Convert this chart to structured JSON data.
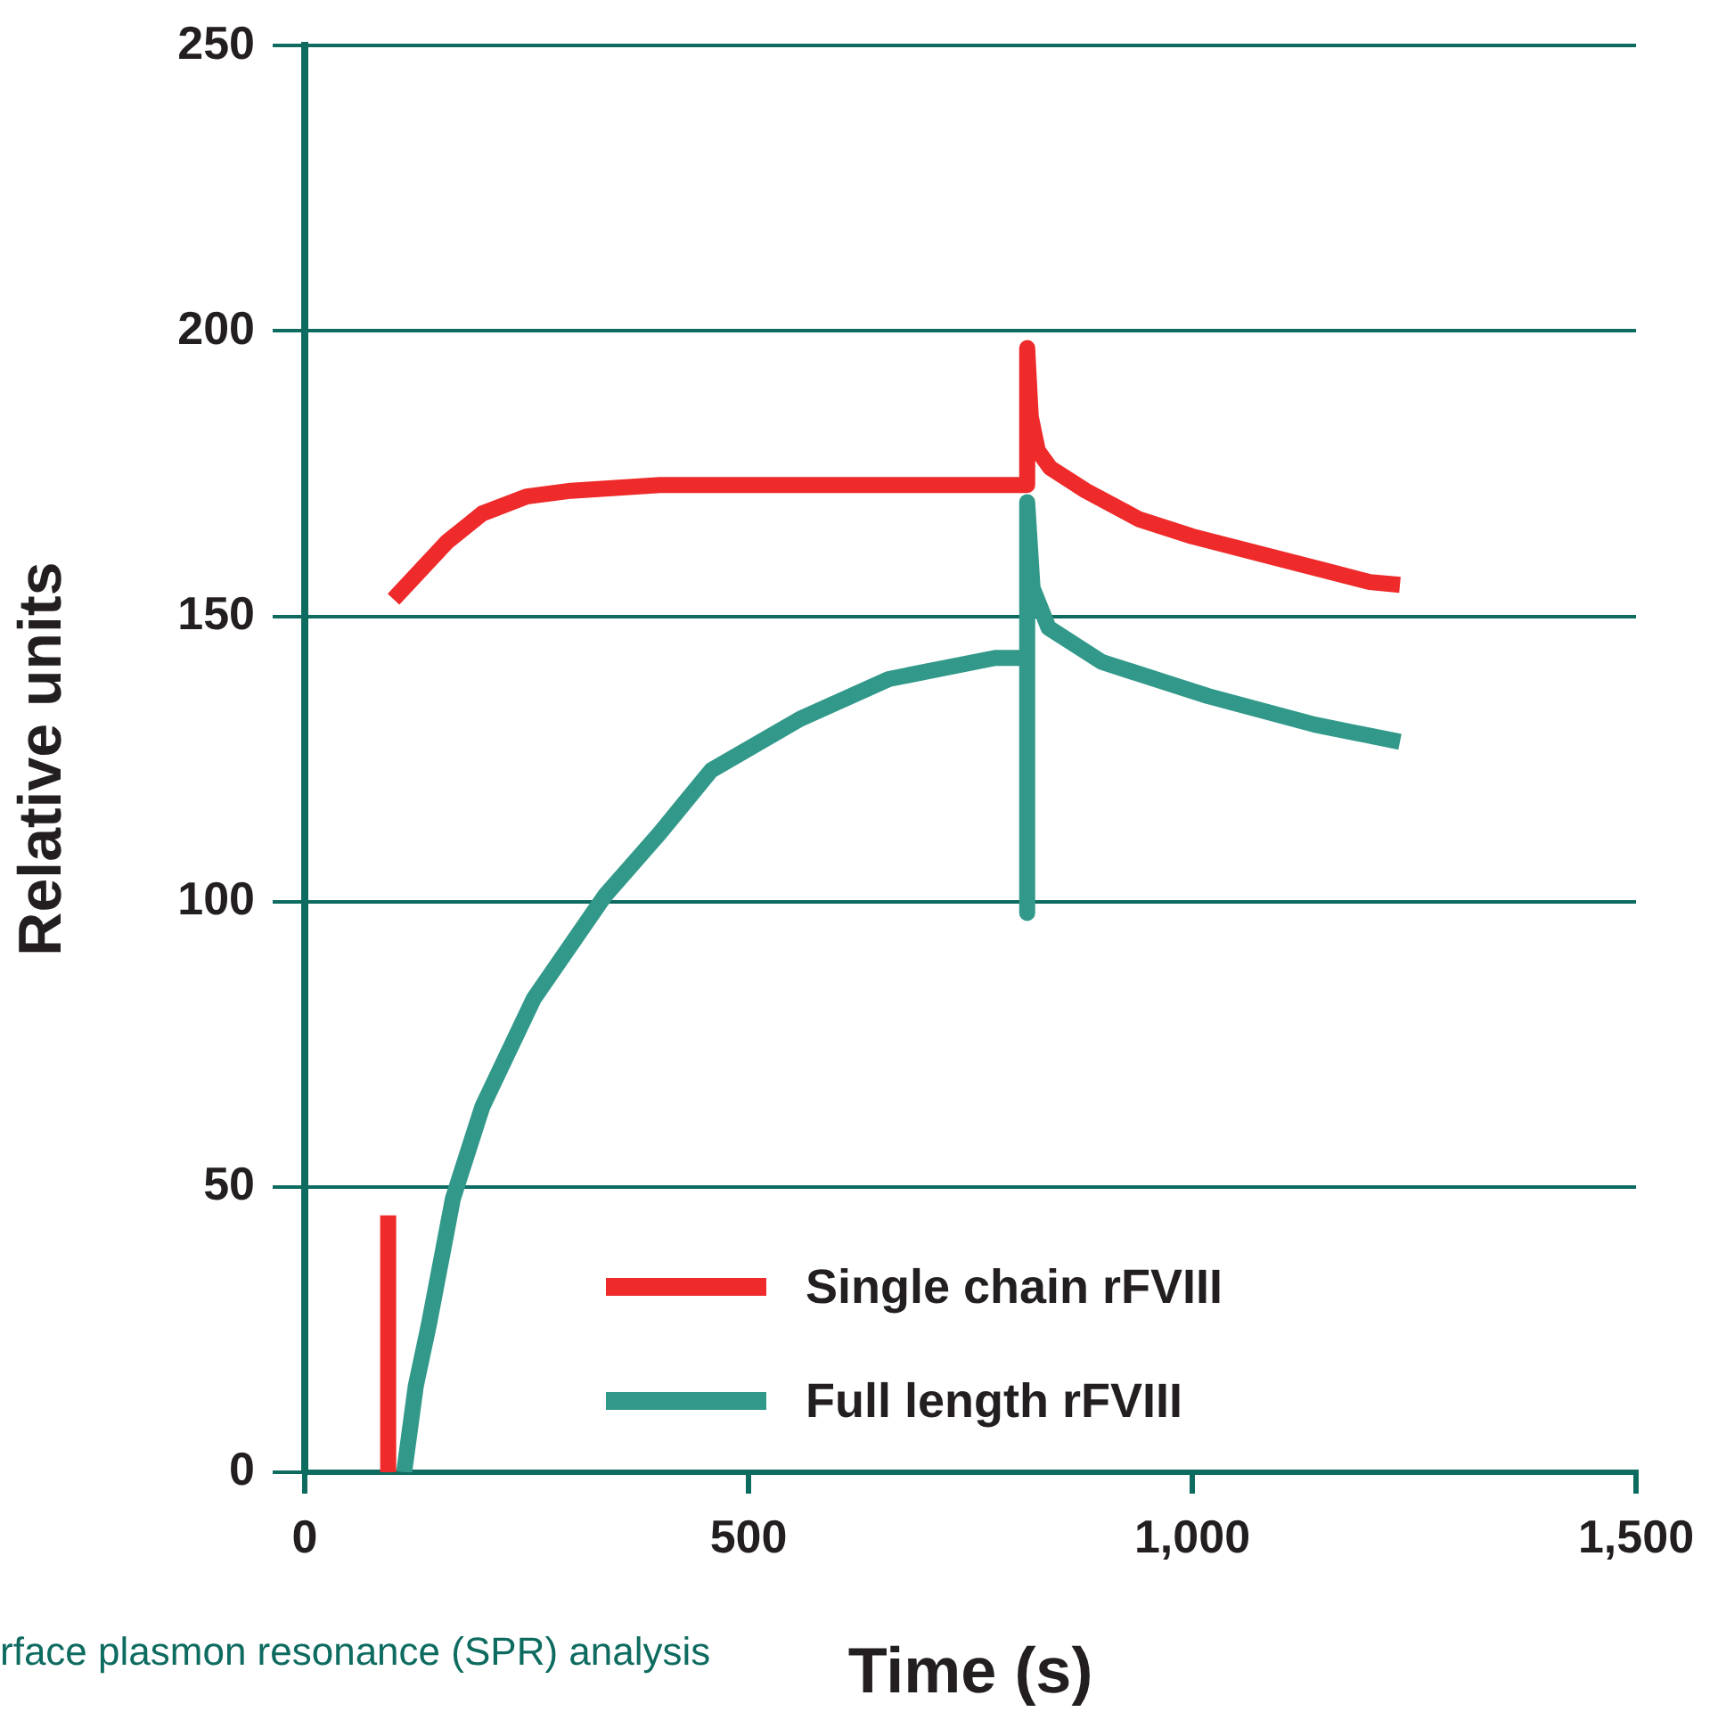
{
  "chart_data": {
    "type": "line",
    "xlabel": "Time (s)",
    "ylabel": "Relative units",
    "xlim": [
      0,
      1500
    ],
    "xticks": [
      {
        "value": 0,
        "label": "0"
      },
      {
        "value": 500,
        "label": "500"
      },
      {
        "value": 1000,
        "label": "1,000"
      },
      {
        "value": 1500,
        "label": "1,500"
      }
    ],
    "ylim": [
      0,
      250
    ],
    "yticks": [
      0,
      50,
      100,
      150,
      200,
      250
    ],
    "grid": "y",
    "legend": "bottom right",
    "marker": "none",
    "line_style": "solid",
    "series": [
      {
        "name": "Single chain rFVIII",
        "color": "#ee2a2a",
        "x": [
          94,
          94,
          null,
          100,
          130,
          160,
          200,
          250,
          300,
          400,
          600,
          814,
          814,
          818,
          826,
          840,
          880,
          940,
          1000,
          1100,
          1150,
          1200,
          1234
        ],
        "values": [
          0,
          45,
          null,
          153,
          158,
          163,
          168,
          171,
          172,
          173,
          173,
          173,
          197,
          185,
          179,
          176,
          172,
          167,
          164,
          160,
          158,
          156,
          155.5
        ]
      },
      {
        "name": "Full length rFVIII",
        "color": "#32998a",
        "x": [
          112,
          125,
          140,
          167,
          200,
          258,
          338,
          400,
          458,
          558,
          658,
          778,
          814,
          814,
          814,
          820,
          838,
          898,
          1018,
          1138,
          1234
        ],
        "values": [
          0,
          15,
          26,
          48,
          64,
          83,
          101,
          112,
          123,
          132,
          139,
          142.7,
          142.7,
          98,
          170,
          155,
          148,
          142,
          136,
          131,
          128
        ]
      }
    ],
    "annotations": [
      "rface plasmon resonance (SPR) analysis"
    ]
  }
}
